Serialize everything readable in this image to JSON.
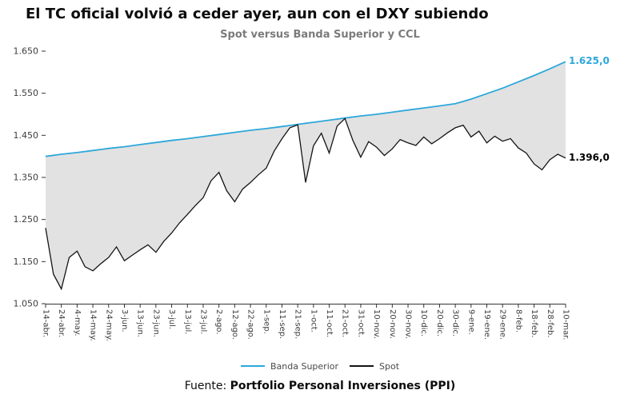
{
  "header": {
    "title": "El TC oficial volvió a ceder ayer, aun con el DXY subiendo"
  },
  "chart_data": {
    "type": "line",
    "title": "Spot versus Banda Superior y CCL",
    "grid": false,
    "legend_position": "bottom",
    "ylim": [
      1050,
      1650
    ],
    "yticks": [
      1050,
      1150,
      1250,
      1350,
      1450,
      1550,
      1650
    ],
    "ytick_labels": [
      "1.050",
      "1.150",
      "1.250",
      "1.350",
      "1.450",
      "1.550",
      "1.650"
    ],
    "x_ticks_days": [
      0,
      10,
      20,
      30,
      40,
      50,
      60,
      70,
      80,
      90,
      100,
      110,
      120,
      130,
      140,
      150,
      160,
      170,
      180,
      190,
      200,
      210,
      220,
      230,
      240,
      250,
      260,
      270,
      280,
      290,
      300,
      310,
      320,
      330
    ],
    "x_tick_labels": [
      "14-abr.",
      "24-abr.",
      "4-may.",
      "14-may.",
      "24-may.",
      "3-jun.",
      "13-jun.",
      "23-jun.",
      "3-jul.",
      "13-jul.",
      "23-jul.",
      "2-ago.",
      "12-ago.",
      "22-ago.",
      "1-sep.",
      "11-sep.",
      "21-sep.",
      "1-oct.",
      "11-oct.",
      "21-oct.",
      "31-oct.",
      "10-nov.",
      "20-nov.",
      "30-nov.",
      "10-dic.",
      "20-dic.",
      "30-dic.",
      "9-ene.",
      "19-ene.",
      "29-ene.",
      "8-feb.",
      "18-feb.",
      "28-feb.",
      "10-mar."
    ],
    "series": [
      {
        "name": "Banda Superior",
        "color": "#2da7db",
        "x": [
          0,
          10,
          20,
          30,
          40,
          50,
          60,
          70,
          80,
          90,
          100,
          110,
          120,
          130,
          140,
          150,
          160,
          170,
          180,
          190,
          200,
          210,
          220,
          230,
          240,
          250,
          260,
          270,
          280,
          290,
          300,
          310,
          320,
          330
        ],
        "values": [
          1400,
          1405,
          1409,
          1414,
          1419,
          1423,
          1428,
          1433,
          1438,
          1442,
          1447,
          1452,
          1457,
          1462,
          1466,
          1471,
          1476,
          1481,
          1486,
          1491,
          1496,
          1500,
          1505,
          1510,
          1515,
          1520,
          1525,
          1536,
          1549,
          1562,
          1577,
          1592,
          1608,
          1625
        ]
      },
      {
        "name": "Spot",
        "color": "#141414",
        "x": [
          0,
          5,
          10,
          15,
          20,
          25,
          30,
          35,
          40,
          45,
          50,
          55,
          60,
          65,
          70,
          75,
          80,
          85,
          90,
          95,
          100,
          105,
          110,
          115,
          120,
          125,
          130,
          135,
          140,
          145,
          150,
          155,
          160,
          165,
          170,
          175,
          180,
          185,
          190,
          195,
          200,
          205,
          210,
          215,
          220,
          225,
          230,
          235,
          240,
          245,
          250,
          255,
          260,
          265,
          270,
          275,
          280,
          285,
          290,
          295,
          300,
          305,
          310,
          315,
          320,
          325,
          330
        ],
        "values": [
          1230,
          1120,
          1085,
          1160,
          1175,
          1138,
          1128,
          1145,
          1160,
          1185,
          1152,
          1165,
          1178,
          1190,
          1172,
          1198,
          1218,
          1242,
          1262,
          1283,
          1302,
          1342,
          1362,
          1318,
          1292,
          1322,
          1338,
          1356,
          1372,
          1412,
          1442,
          1468,
          1475,
          1338,
          1425,
          1455,
          1408,
          1472,
          1490,
          1438,
          1398,
          1435,
          1422,
          1402,
          1418,
          1440,
          1432,
          1426,
          1446,
          1430,
          1442,
          1456,
          1468,
          1474,
          1446,
          1460,
          1432,
          1448,
          1436,
          1442,
          1420,
          1408,
          1382,
          1368,
          1392,
          1405,
          1396
        ]
      }
    ],
    "fill_between": {
      "upper": "Banda Superior",
      "lower": "Spot",
      "color": "#e2e2e2"
    },
    "annotations": {
      "banda_end": {
        "text": "1.625,0",
        "color": "#2da7db"
      },
      "spot_end": {
        "text": "1.396,0",
        "color": "#000000"
      }
    }
  },
  "footer": {
    "prefix": "Fuente:",
    "source": "Portfolio Personal Inversiones (PPI)"
  }
}
